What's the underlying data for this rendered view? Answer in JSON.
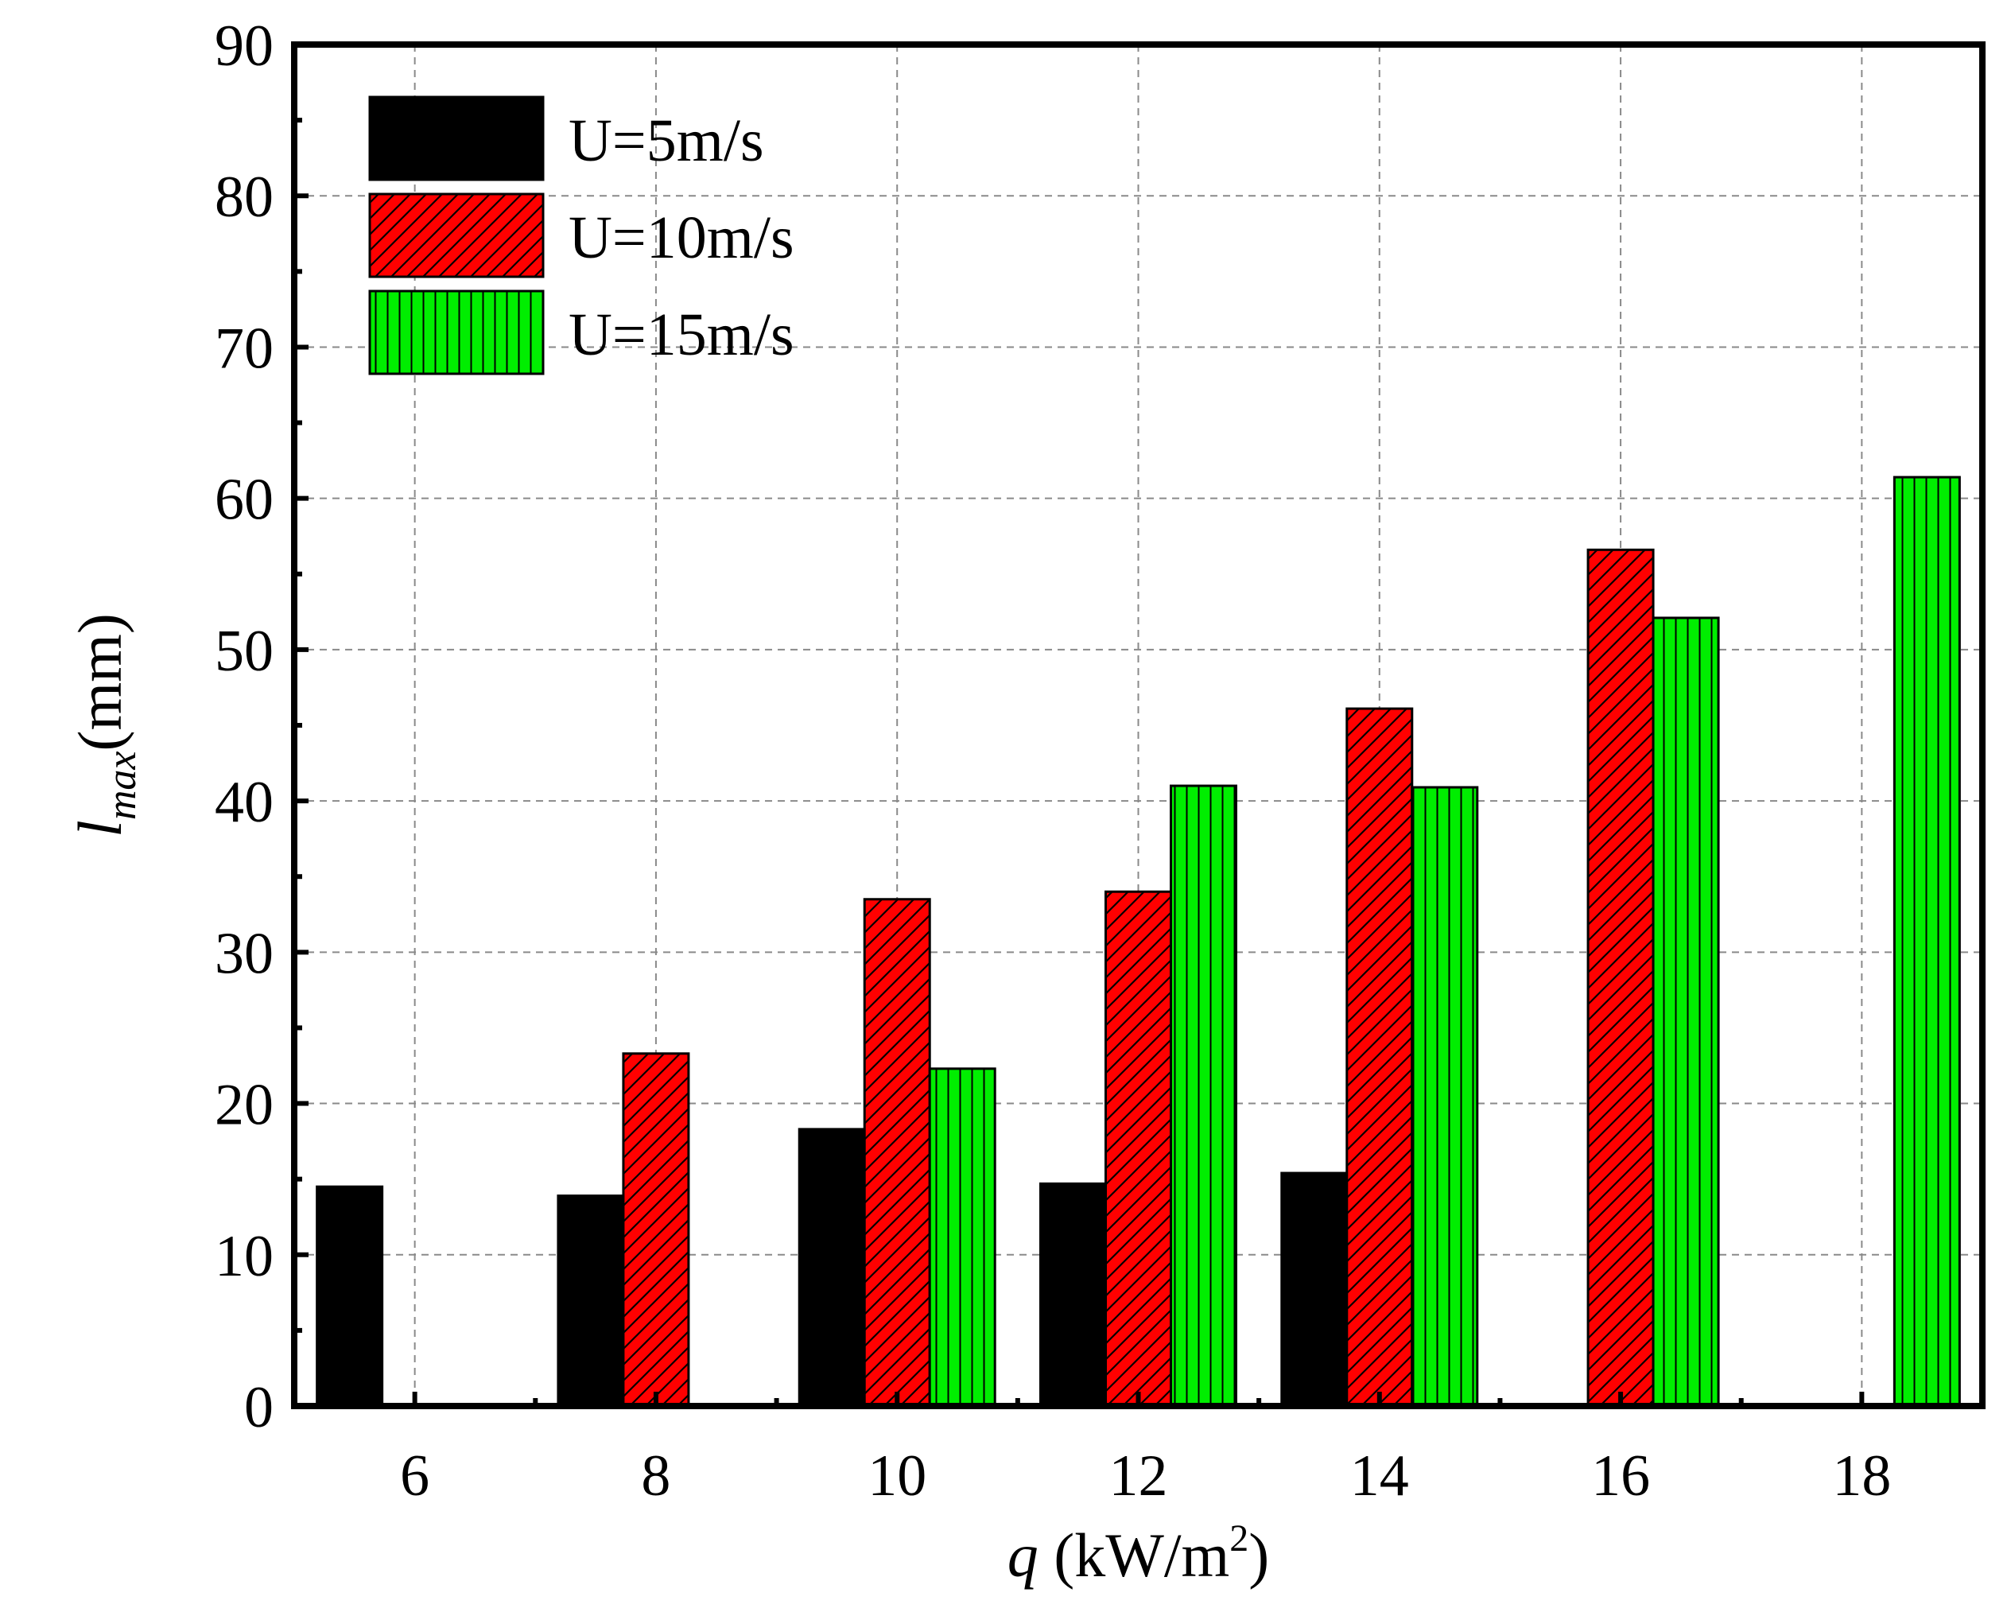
{
  "chart_data": {
    "type": "bar",
    "categories": [
      "6",
      "8",
      "10",
      "12",
      "14",
      "16",
      "18"
    ],
    "series": [
      {
        "name": "U=5m/s",
        "values": [
          14.5,
          13.9,
          18.3,
          14.7,
          15.4,
          0,
          0
        ],
        "color": "#000000",
        "pattern": "solid"
      },
      {
        "name": "U=10m/s",
        "values": [
          0,
          23.3,
          33.5,
          34.0,
          46.1,
          56.6,
          0
        ],
        "color": "#ff0000",
        "pattern": "diagonal-hatch"
      },
      {
        "name": "U=15m/s",
        "values": [
          0,
          0,
          22.3,
          41.0,
          40.9,
          52.1,
          61.4
        ],
        "color": "#00ee00",
        "pattern": "vertical-hatch"
      }
    ],
    "xlabel": {
      "italic": "q",
      "text": " (kW/m",
      "sup": "2",
      "close": ")"
    },
    "ylabel": {
      "main": "l",
      "sub": "max",
      "unit": "(mm)"
    },
    "ylim": [
      0,
      90
    ],
    "yticks": [
      "0",
      "10",
      "20",
      "30",
      "40",
      "50",
      "60",
      "70",
      "80",
      "90"
    ],
    "grid": true,
    "legend_position": "top-left"
  }
}
